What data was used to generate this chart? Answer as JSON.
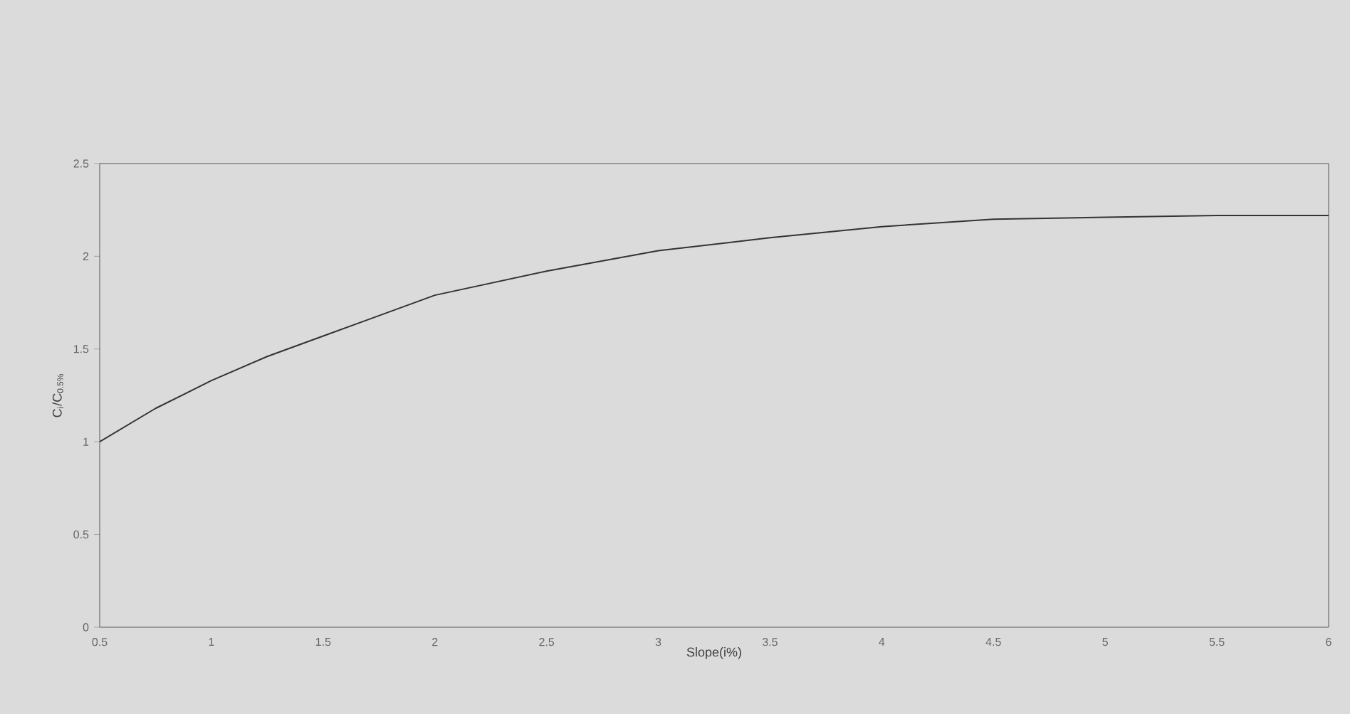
{
  "chart_data": {
    "type": "line",
    "xlabel": "Slope(i%)",
    "ylabel": "C$_{i}$/C$_{0.5%}$",
    "series": [
      {
        "color": "#333333",
        "x": [
          0.5,
          0.75,
          1,
          1.25,
          1.5,
          2,
          2.5,
          3,
          3.5,
          4,
          4.5,
          5,
          5.5,
          6
        ],
        "values": [
          1.0,
          1.18,
          1.33,
          1.46,
          1.57,
          1.79,
          1.92,
          2.03,
          2.1,
          2.16,
          2.2,
          2.21,
          2.22,
          2.22
        ]
      }
    ],
    "xlim": [
      0.5,
      6
    ],
    "ylim": [
      0,
      2.5
    ],
    "xticks": [
      0.5,
      1,
      1.5,
      2,
      2.5,
      3,
      3.5,
      4,
      4.5,
      5,
      5.5,
      6
    ],
    "yticks": [
      0,
      0.5,
      1,
      1.5,
      2,
      2.5
    ],
    "grid": false,
    "marker": "none",
    "line_style": "solid"
  }
}
